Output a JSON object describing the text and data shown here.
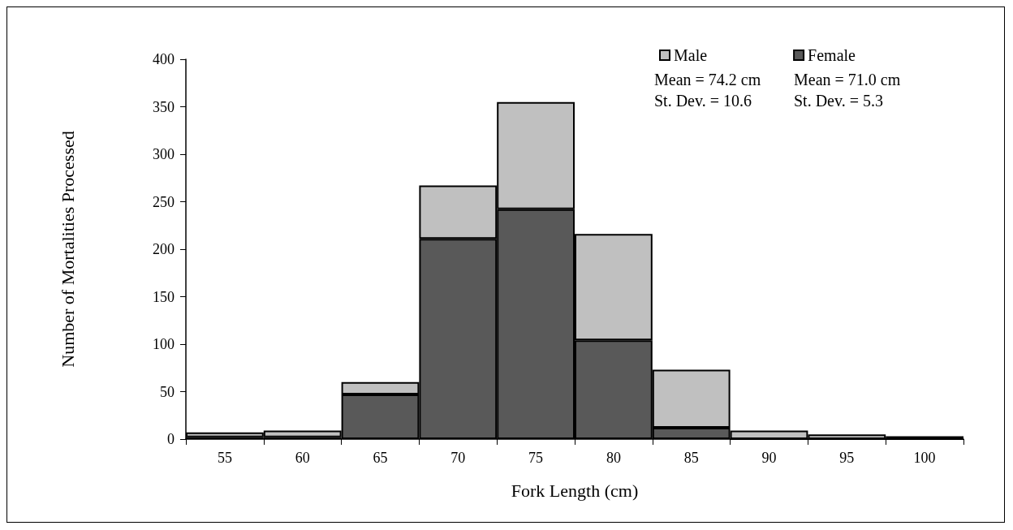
{
  "chart_data": {
    "type": "bar",
    "stacked": true,
    "xlabel": "Fork Length (cm)",
    "ylabel": "Number of Mortalities Processed",
    "categories": [
      "55",
      "60",
      "65",
      "70",
      "75",
      "80",
      "85",
      "90",
      "95",
      "100"
    ],
    "series": [
      {
        "name": "Female",
        "color": "#595959",
        "values": [
          2,
          2,
          47,
          211,
          242,
          104,
          12,
          0,
          0,
          0
        ]
      },
      {
        "name": "Male",
        "color": "#c0c0c0",
        "values": [
          5,
          7,
          13,
          56,
          113,
          112,
          61,
          9,
          5,
          3
        ]
      }
    ],
    "ylim": [
      0,
      400
    ],
    "yticks": [
      0,
      50,
      100,
      150,
      200,
      250,
      300,
      350,
      400
    ],
    "grid": false,
    "legend": "top right",
    "annotations": [
      "Mean = 74.2 cm",
      "St. Dev. = 10.6",
      "Mean = 71.0 cm",
      "St. Dev. = 5.3"
    ]
  }
}
